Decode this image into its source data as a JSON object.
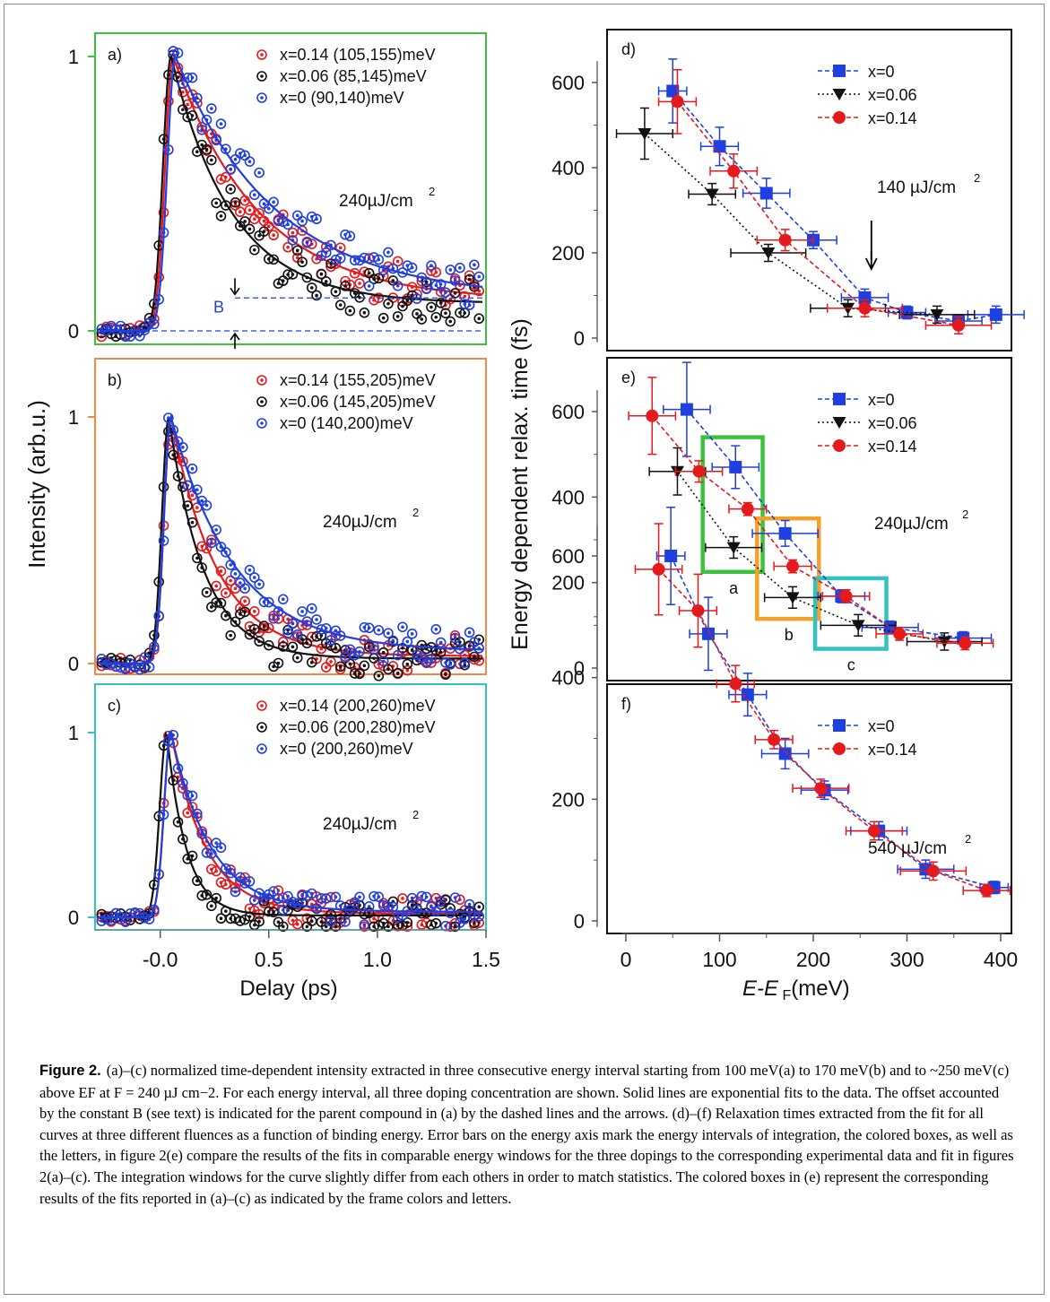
{
  "figure_label": "Figure 2.",
  "caption_text": "(a)–(c) normalized time-dependent intensity extracted in three consecutive energy interval starting from 100 meV(a) to 170 meV(b) and to ~250 meV(c) above EF at F = 240 µJ cm−2. For each energy interval, all three doping concentration are shown. Solid lines are exponential fits to the data. The offset accounted by the constant B (see text) is indicated for the parent compound in (a) by the dashed lines and the arrows. (d)–(f) Relaxation times extracted from the fit for all curves at three different fluences as a function of binding energy. Error bars on the energy axis mark the energy intervals of integration, the colored boxes, as well as the letters, in figure 2(e) compare the results of the fits in comparable energy windows for the three dopings to the corresponding experimental data and fit in figures 2(a)–(c). The integration windows for the curve slightly differ from each others in order to match statistics. The colored boxes in (e) represent the corresponding results of the fits reported in (a)–(c) as indicated by the frame colors and letters.",
  "colors": {
    "x014": "#e41a1c",
    "x006": "#111111",
    "x0": "#1f3fe0",
    "frame_a": "#3cc23c",
    "frame_b": "#f08a4b",
    "frame_c": "#33c2c2",
    "box_orange": "#f3a12a"
  },
  "left_axis": {
    "ylabel": "Intensity (arb.u.)",
    "xlabel": "Delay (ps)",
    "xticks": [
      "-0.0",
      "0.5",
      "1.0",
      "1.5"
    ],
    "yticks": [
      "0",
      "1"
    ],
    "xlim": [
      -0.3,
      1.5
    ]
  },
  "right_axis": {
    "ylabel": "Energy dependent relax. time (fs)",
    "xlabel_main": "E-E",
    "xlabel_sub": "F",
    "xlabel_unit": "(meV)",
    "xticks": [
      "0",
      "100",
      "200",
      "300",
      "400"
    ],
    "yticks": [
      "0",
      "200",
      "400",
      "600"
    ],
    "xlim": [
      0,
      400
    ],
    "ylim": [
      -20,
      720
    ]
  },
  "chart_data": [
    {
      "type": "scatter",
      "panel": "a",
      "fluence": "240µJ/cm",
      "fluence_exp": "2",
      "series": [
        {
          "name": "x=0.14 (105,155)meV",
          "color_key": "x014",
          "fit": {
            "rise": 0.035,
            "tau": 0.39,
            "B": 0.11,
            "peak": 0.06
          }
        },
        {
          "name": "x=0.06 (85,145)meV",
          "color_key": "x006",
          "fit": {
            "rise": 0.035,
            "tau": 0.28,
            "B": 0.1,
            "peak": 0.05
          }
        },
        {
          "name": "x=0 (90,140)meV",
          "color_key": "x0",
          "fit": {
            "rise": 0.035,
            "tau": 0.46,
            "B": 0.12,
            "peak": 0.07
          }
        }
      ],
      "annotation": {
        "label": "B",
        "level": 0.12
      }
    },
    {
      "type": "scatter",
      "panel": "b",
      "fluence": "240µJ/cm",
      "fluence_exp": "2",
      "series": [
        {
          "name": "x=0.14 (155,205)meV",
          "color_key": "x014",
          "fit": {
            "rise": 0.03,
            "tau": 0.21,
            "B": 0.03,
            "peak": 0.05
          }
        },
        {
          "name": "x=0.06 (145,205)meV",
          "color_key": "x006",
          "fit": {
            "rise": 0.03,
            "tau": 0.16,
            "B": 0.02,
            "peak": 0.04
          }
        },
        {
          "name": "x=0 (140,200)meV",
          "color_key": "x0",
          "fit": {
            "rise": 0.03,
            "tau": 0.29,
            "B": 0.05,
            "peak": 0.05
          }
        }
      ]
    },
    {
      "type": "scatter",
      "panel": "c",
      "fluence": "240µJ/cm",
      "fluence_exp": "2",
      "series": [
        {
          "name": "x=0.14 (200,260)meV",
          "color_key": "x014",
          "fit": {
            "rise": 0.03,
            "tau": 0.16,
            "B": 0.02,
            "peak": 0.05
          }
        },
        {
          "name": "x=0.06 (200,280)meV",
          "color_key": "x006",
          "fit": {
            "rise": 0.03,
            "tau": 0.09,
            "B": 0.01,
            "peak": 0.03
          }
        },
        {
          "name": "x=0 (200,260)meV",
          "color_key": "x0",
          "fit": {
            "rise": 0.03,
            "tau": 0.18,
            "B": 0.03,
            "peak": 0.05
          }
        }
      ]
    },
    {
      "type": "scatter",
      "panel": "d",
      "fluence": "140 µJ/cm",
      "fluence_exp": "2",
      "series": [
        {
          "name": "x=0",
          "color_key": "x0",
          "marker": "square",
          "points": [
            [
              50,
              580,
              15,
              75
            ],
            [
              100,
              450,
              20,
              45
            ],
            [
              150,
              340,
              25,
              35
            ],
            [
              200,
              230,
              25,
              20
            ],
            [
              255,
              95,
              25,
              20
            ],
            [
              300,
              60,
              20,
              15
            ],
            [
              355,
              40,
              25,
              15
            ],
            [
              395,
              55,
              30,
              20
            ]
          ]
        },
        {
          "name": "x=0.06",
          "color_key": "x006",
          "marker": "triangle",
          "points": [
            [
              20,
              480,
              30,
              60
            ],
            [
              92,
              338,
              25,
              25
            ],
            [
              152,
              200,
              40,
              20
            ],
            [
              237,
              70,
              40,
              20
            ],
            [
              332,
              55,
              40,
              20
            ]
          ]
        },
        {
          "name": "x=0.14",
          "color_key": "x014",
          "marker": "circle",
          "points": [
            [
              55,
              555,
              20,
              75
            ],
            [
              115,
              392,
              25,
              40
            ],
            [
              170,
              230,
              30,
              25
            ],
            [
              255,
              70,
              40,
              20
            ],
            [
              355,
              30,
              35,
              20
            ]
          ]
        }
      ],
      "annotation": {
        "arrow_x": 262
      }
    },
    {
      "type": "scatter",
      "panel": "e",
      "fluence": "240µJ/cm",
      "fluence_exp": "2",
      "series": [
        {
          "name": "x=0",
          "color_key": "x0",
          "marker": "square",
          "points": [
            [
              65,
              605,
              25,
              110
            ],
            [
              117,
              470,
              25,
              50
            ],
            [
              170,
              315,
              35,
              30
            ],
            [
              230,
              168,
              25,
              15
            ],
            [
              282,
              95,
              30,
              15
            ],
            [
              360,
              70,
              30,
              15
            ]
          ]
        },
        {
          "name": "x=0.06",
          "color_key": "x006",
          "marker": "triangle",
          "points": [
            [
              55,
              460,
              30,
              55
            ],
            [
              115,
              282,
              30,
              25
            ],
            [
              178,
              165,
              30,
              25
            ],
            [
              248,
              100,
              40,
              25
            ],
            [
              340,
              62,
              40,
              20
            ]
          ]
        },
        {
          "name": "x=0.14",
          "color_key": "x014",
          "marker": "circle",
          "points": [
            [
              28,
              590,
              25,
              90
            ],
            [
              78,
              460,
              25,
              25
            ],
            [
              130,
              372,
              20,
              15
            ],
            [
              178,
              238,
              20,
              15
            ],
            [
              235,
              168,
              25,
              15
            ],
            [
              292,
              80,
              25,
              15
            ],
            [
              362,
              58,
              30,
              15
            ]
          ]
        }
      ],
      "boxes": [
        {
          "label": "a",
          "color_key": "frame_a",
          "x0": 82,
          "x1": 146,
          "y0": 225,
          "y1": 540
        },
        {
          "label": "b",
          "color_key": "box_orange",
          "x0": 140,
          "x1": 206,
          "y0": 115,
          "y1": 350
        },
        {
          "label": "c",
          "color_key": "frame_c",
          "x0": 202,
          "x1": 278,
          "y0": 45,
          "y1": 210
        }
      ]
    },
    {
      "type": "scatter",
      "panel": "f",
      "fluence": "540 µJ/cm",
      "fluence_exp": "2",
      "series": [
        {
          "name": "x=0",
          "color_key": "x0",
          "marker": "square",
          "points": [
            [
              48,
              600,
              15,
              80
            ],
            [
              88,
              472,
              20,
              60
            ],
            [
              130,
              372,
              20,
              35
            ],
            [
              170,
              275,
              25,
              25
            ],
            [
              212,
              215,
              25,
              15
            ],
            [
              270,
              148,
              30,
              15
            ],
            [
              320,
              85,
              30,
              15
            ],
            [
              393,
              55,
              15,
              10
            ]
          ]
        },
        {
          "name": "x=0.14",
          "color_key": "x014",
          "marker": "circle",
          "points": [
            [
              35,
              578,
              25,
              75
            ],
            [
              77,
              510,
              20,
              60
            ],
            [
              117,
              390,
              20,
              30
            ],
            [
              158,
              298,
              20,
              15
            ],
            [
              208,
              218,
              30,
              15
            ],
            [
              265,
              148,
              30,
              15
            ],
            [
              328,
              82,
              35,
              15
            ],
            [
              385,
              50,
              25,
              10
            ]
          ]
        }
      ]
    }
  ]
}
